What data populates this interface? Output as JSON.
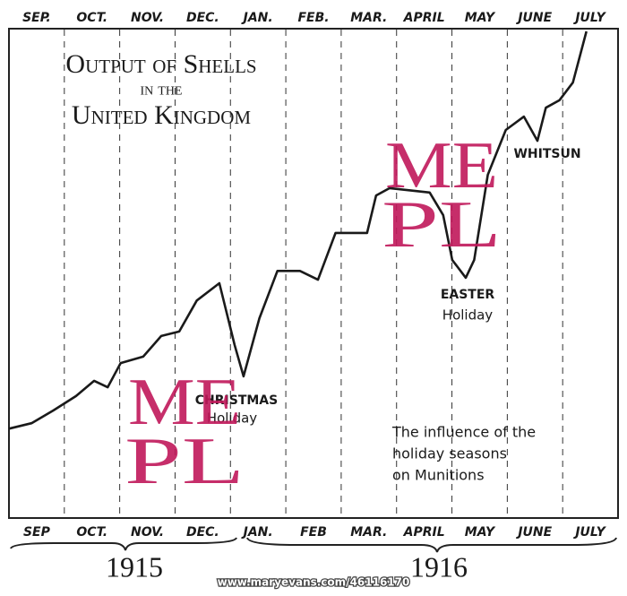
{
  "chart_data": {
    "type": "line",
    "title": [
      "Output of Shells",
      "in the",
      "United Kingdom"
    ],
    "top_labels": [
      "SEP.",
      "OCT.",
      "NOV.",
      "DEC.",
      "JAN.",
      "FEB.",
      "MAR.",
      "APRIL",
      "MAY",
      "JUNE",
      "JULY"
    ],
    "categories": [
      "SEP",
      "OCT.",
      "NOV.",
      "DEC.",
      "JAN.",
      "FEB",
      "MAR.",
      "APRIL",
      "MAY",
      "JUNE",
      "JULY"
    ],
    "years": [
      "1915",
      "1916"
    ],
    "xlim": [
      0,
      10.8
    ],
    "ylim": [
      0,
      100
    ],
    "x": [
      0,
      0.4,
      0.79,
      1.19,
      1.51,
      1.75,
      1.98,
      2.38,
      2.7,
      3.02,
      3.33,
      3.73,
      4,
      4.16,
      4.44,
      4.76,
      5.16,
      5.48,
      5.79,
      6.35,
      6.51,
      6.75,
      7.46,
      7.7,
      7.86,
      8.1,
      8.25,
      8.49,
      8.81,
      9.13,
      9.37,
      9.52,
      9.76,
      10,
      10.24
    ],
    "series": [
      {
        "color": "#1a1a1a",
        "values": [
          18.5,
          19.6,
          22.2,
          25.1,
          28.2,
          26.9,
          31.8,
          33.1,
          37.3,
          38.2,
          44.5,
          48,
          35.5,
          29.1,
          40.9,
          50.5,
          50.5,
          48.7,
          58.2,
          58.2,
          65.8,
          67.3,
          66.4,
          61.8,
          52.7,
          49.1,
          52.7,
          70,
          79.1,
          81.8,
          76.9,
          83.6,
          85.1,
          88.7,
          99.1
        ]
      }
    ],
    "annotations": {
      "whitsun": "WHITSUN",
      "easter": [
        "EASTER",
        "Holiday"
      ],
      "christmas": [
        "CHRISTMAS",
        "Holiday"
      ],
      "note": [
        "The influence of the",
        "holiday seasons",
        "on Munitions"
      ]
    },
    "watermark": [
      "ME",
      "PL"
    ],
    "credit": "www.maryevans.com/46116170"
  }
}
